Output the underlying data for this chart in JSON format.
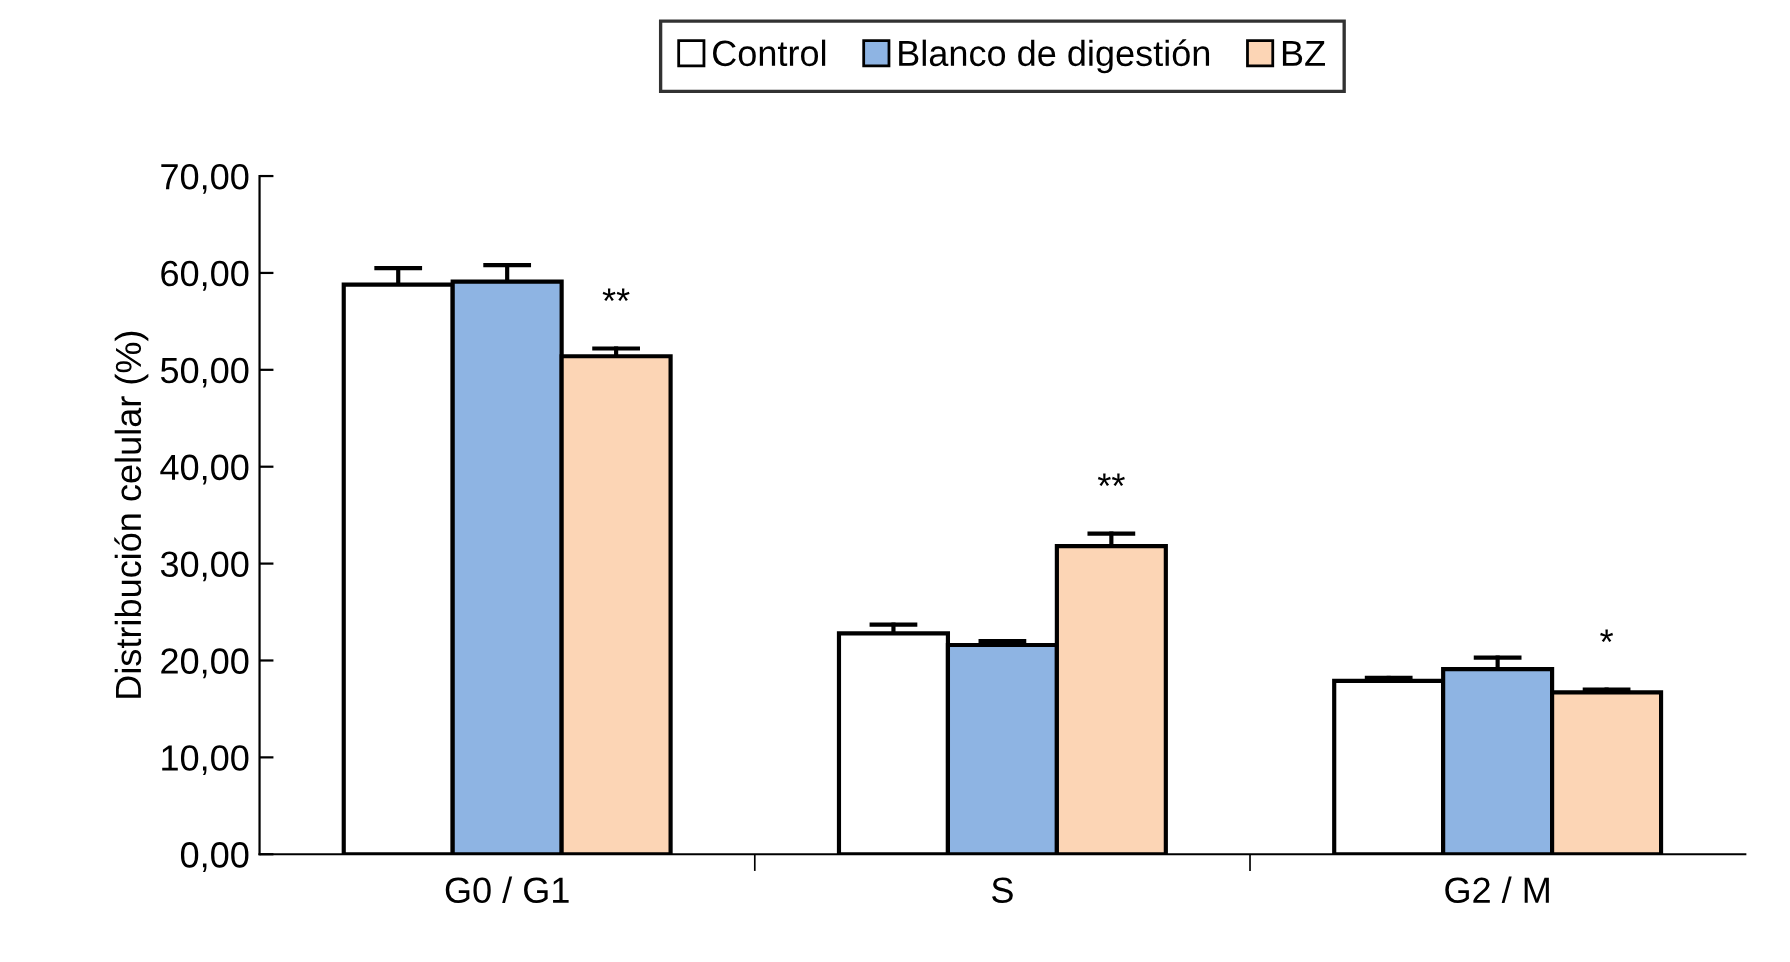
{
  "chart_data": {
    "type": "bar",
    "ylabel": "Distribución celular (%)",
    "categories": [
      "G0 / G1",
      "S",
      "G2 / M"
    ],
    "series": [
      {
        "name": "Control",
        "color": "#ffffff",
        "values": [
          58.8,
          22.8,
          17.9
        ],
        "errors": [
          [
            58.8,
            60.5
          ],
          [
            22.8,
            23.7
          ],
          [
            17.9,
            18.2
          ]
        ]
      },
      {
        "name": "Blanco de digestión",
        "color": "#8eb4e3",
        "values": [
          59.1,
          21.6,
          19.1
        ],
        "errors": [
          [
            59.1,
            60.8
          ],
          [
            21.6,
            22.0
          ],
          [
            19.1,
            20.3
          ]
        ]
      },
      {
        "name": "BZ",
        "color": "#fcd5b5",
        "values": [
          51.4,
          31.8,
          16.7
        ],
        "errors": [
          [
            51.4,
            52.2
          ],
          [
            31.8,
            33.1
          ],
          [
            16.7,
            17.0
          ]
        ]
      }
    ],
    "ylim": [
      0,
      70
    ],
    "yticks": [
      {
        "value": 0,
        "label": "0,00"
      },
      {
        "value": 10,
        "label": "10,00"
      },
      {
        "value": 20,
        "label": "20,00"
      },
      {
        "value": 30,
        "label": "30,00"
      },
      {
        "value": 40,
        "label": "40,00"
      },
      {
        "value": 50,
        "label": "50,00"
      },
      {
        "value": 60,
        "label": "60,00"
      },
      {
        "value": 70,
        "label": "70,00"
      }
    ],
    "annotations": [
      "**",
      "**",
      "*"
    ],
    "legend": "top",
    "grid": false
  }
}
